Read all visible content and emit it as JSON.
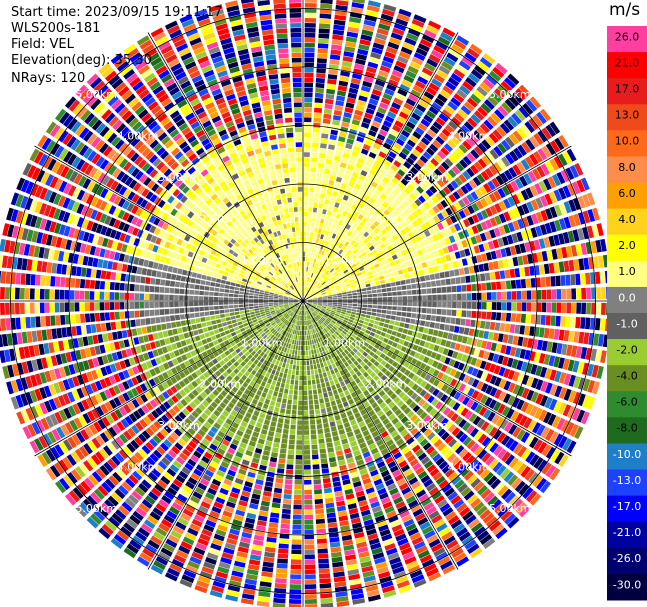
{
  "header": {
    "start_time": "Start time: 2023/09/15 19:11:17",
    "instrument": "WLS200s-181",
    "field": "Field: VEL",
    "elevation": "Elevation(deg): 35.30",
    "nrays": "NRays: 120"
  },
  "colorbar": {
    "unit": "m/s",
    "ticks": [
      "26.0",
      "21.0",
      "17.0",
      "13.0",
      "10.0",
      "8.0",
      "6.0",
      "4.0",
      "2.0",
      "1.0",
      "0.0",
      "-1.0",
      "-2.0",
      "-4.0",
      "-6.0",
      "-8.0",
      "-10.0",
      "-13.0",
      "-17.0",
      "-21.0",
      "-26.0",
      "-30.0"
    ],
    "colors": [
      "#ff3fa0",
      "#ff0000",
      "#e81c1c",
      "#f04a1a",
      "#ff6a1a",
      "#ff8c4a",
      "#ffa000",
      "#ffd21c",
      "#ffff00",
      "#ffff80",
      "#808080",
      "#606060",
      "#9acd32",
      "#6b8e23",
      "#2e8b2e",
      "#1e6b1e",
      "#1e7fc8",
      "#1e40ff",
      "#0000ff",
      "#0000a0",
      "#00006e",
      "#000040"
    ]
  },
  "chart_data": {
    "type": "polar_ppi",
    "field": "VEL",
    "units": "m/s",
    "nrays": 120,
    "range_rings_km": [
      1.0,
      2.0,
      3.0,
      4.0,
      5.0
    ],
    "range_ring_labels": [
      "1.00km",
      "2.00km",
      "3.00km",
      "4.00km",
      "5.00km"
    ],
    "max_range_km": 5.3,
    "spoke_step_deg": 30,
    "data_summary": {
      "north_sector_0_3km": "positive velocities ~1-2 m/s (yellow)",
      "south_sector_0_3km": "negative velocities ~-1 to -4 m/s (green)",
      "east_west_near_range": "near zero ~0 m/s (gray)",
      "beyond_3km": "noise, random colors across full scale"
    }
  }
}
